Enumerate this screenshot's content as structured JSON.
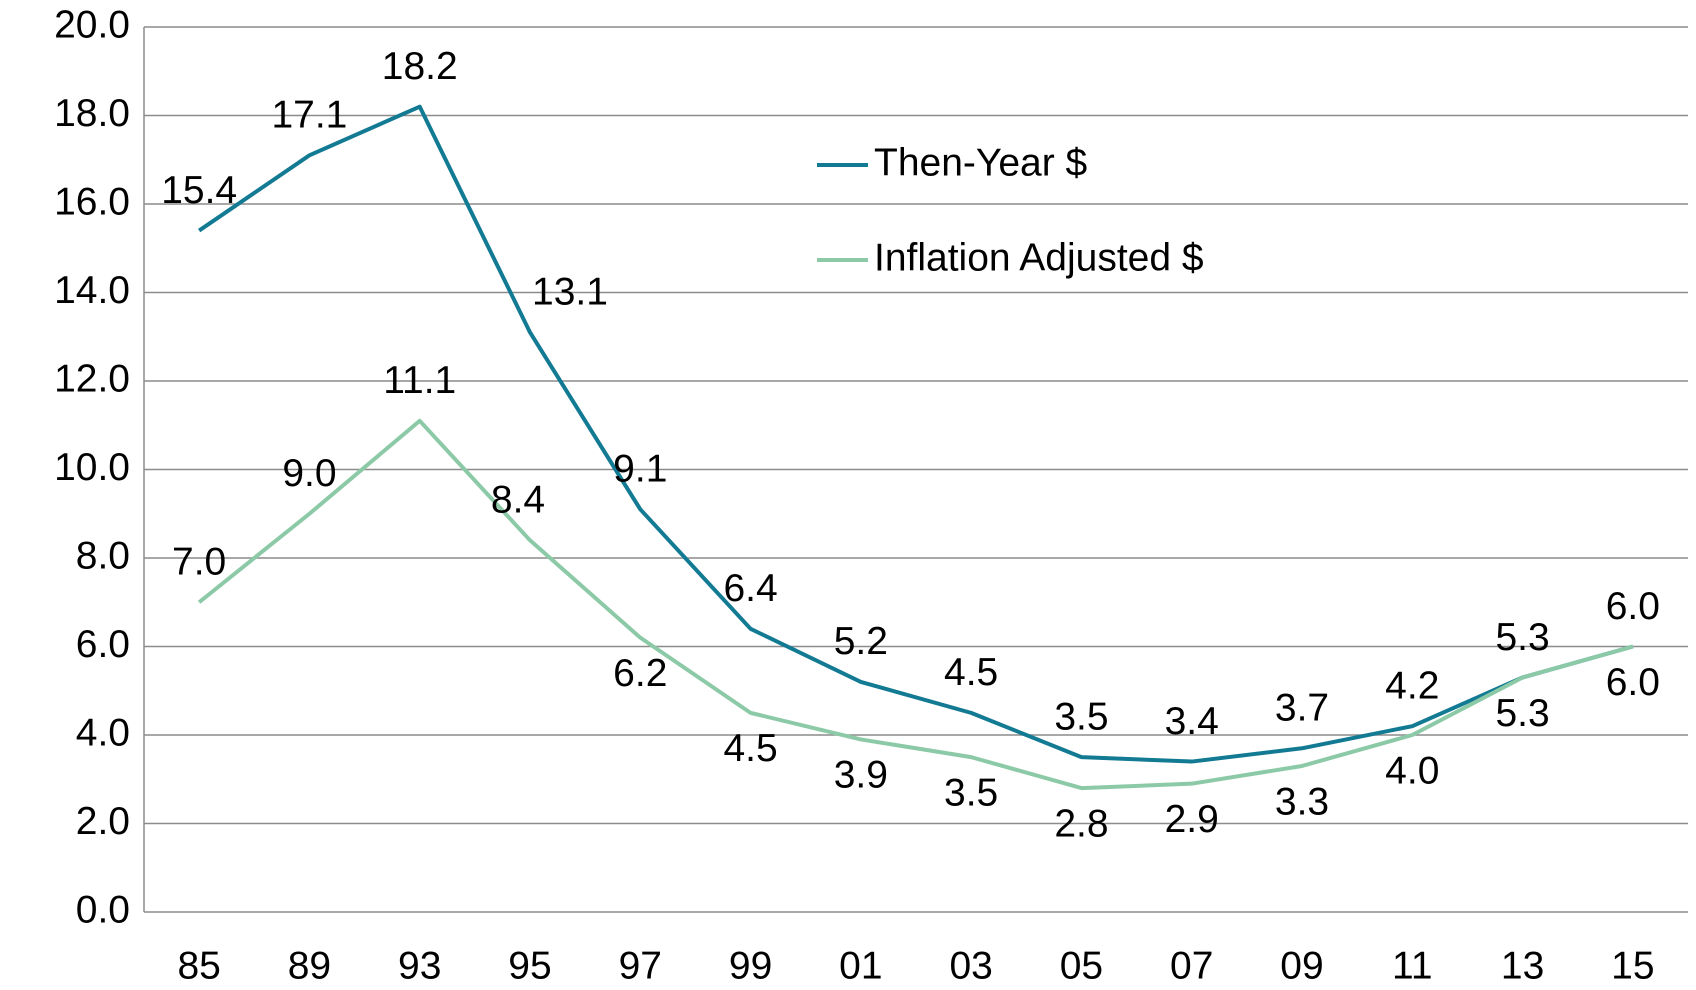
{
  "chart_data": {
    "type": "line",
    "categories": [
      "85",
      "89",
      "93",
      "95",
      "97",
      "99",
      "01",
      "03",
      "05",
      "07",
      "09",
      "11",
      "13",
      "15"
    ],
    "series": [
      {
        "name": "Then-Year $",
        "color": "#137a93",
        "values": [
          15.4,
          17.1,
          18.2,
          13.1,
          9.1,
          6.4,
          5.2,
          4.5,
          3.5,
          3.4,
          3.7,
          4.2,
          5.3,
          6.0
        ],
        "value_labels": [
          "15.4",
          "17.1",
          "18.2",
          "13.1",
          "9.1",
          "6.4",
          "5.2",
          "4.5",
          "3.5",
          "3.4",
          "3.7",
          "4.2",
          "5.3",
          "6.0"
        ]
      },
      {
        "name": "Inflation Adjusted $",
        "color": "#8ccaa7",
        "values": [
          7.0,
          9.0,
          11.1,
          8.4,
          6.2,
          4.5,
          3.9,
          3.5,
          2.8,
          2.9,
          3.3,
          4.0,
          5.3,
          6.0
        ],
        "value_labels": [
          "7.0",
          "9.0",
          "11.1",
          "8.4",
          "6.2",
          "4.5",
          "3.9",
          "3.5",
          "2.8",
          "2.9",
          "3.3",
          "4.0",
          "5.3",
          "6.0"
        ]
      }
    ],
    "ylim": [
      0,
      20
    ],
    "yticks": [
      {
        "value": 0,
        "label": "0.0"
      },
      {
        "value": 2,
        "label": "2.0"
      },
      {
        "value": 4,
        "label": "4.0"
      },
      {
        "value": 6,
        "label": "6.0"
      },
      {
        "value": 8,
        "label": "8.0"
      },
      {
        "value": 10,
        "label": "10.0"
      },
      {
        "value": 12,
        "label": "12.0"
      },
      {
        "value": 14,
        "label": "14.0"
      },
      {
        "value": 16,
        "label": "16.0"
      },
      {
        "value": 18,
        "label": "18.0"
      },
      {
        "value": 20,
        "label": "20.0"
      }
    ],
    "grid": true,
    "legend": "top"
  }
}
